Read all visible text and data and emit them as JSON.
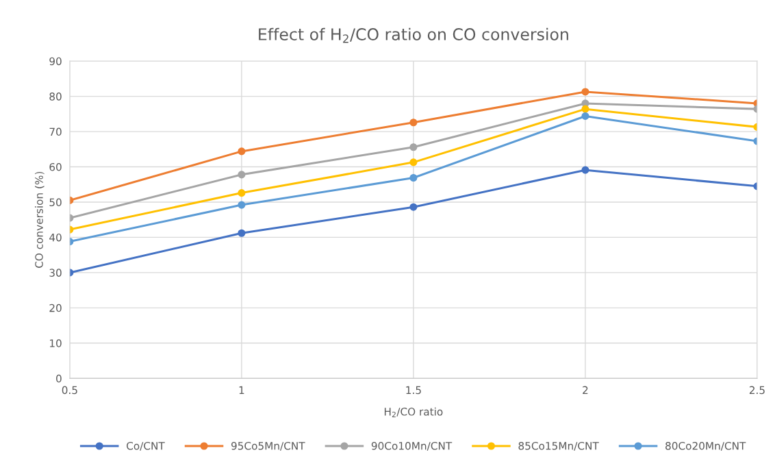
{
  "chart_data": {
    "type": "line",
    "title": "Effect of H$_{2}$/CO ratio on CO conversion",
    "xlabel": "H$_{2}$/CO ratio",
    "ylabel": "CO conversion (%)",
    "x": [
      0.5,
      1,
      1.5,
      2,
      2.5
    ],
    "series": [
      {
        "name": "Co/CNT",
        "color": "#4472c4",
        "values": [
          30,
          41.2,
          48.6,
          59.1,
          54.5
        ]
      },
      {
        "name": "95Co5Mn/CNT",
        "color": "#ed7d31",
        "values": [
          50.5,
          64.4,
          72.6,
          81.3,
          78
        ]
      },
      {
        "name": "90Co10Mn/CNT",
        "color": "#a5a5a5",
        "values": [
          45.5,
          57.8,
          65.6,
          78,
          76.4
        ]
      },
      {
        "name": "85Co15Mn/CNT",
        "color": "#ffc000",
        "values": [
          42.2,
          52.6,
          61.3,
          76.4,
          71.3
        ]
      },
      {
        "name": "80Co20Mn/CNT",
        "color": "#5b9bd5",
        "values": [
          38.8,
          49.2,
          56.9,
          74.4,
          67.3
        ]
      }
    ],
    "xlim": [
      0.5,
      2.5
    ],
    "xticks": [
      0.5,
      1,
      1.5,
      2,
      2.5
    ],
    "ylim": [
      0,
      90
    ],
    "yticks": [
      0,
      10,
      20,
      30,
      40,
      50,
      60,
      70,
      80,
      90
    ],
    "grid": true,
    "legend": "bottom",
    "marker": "circle",
    "line_style": "solid"
  }
}
